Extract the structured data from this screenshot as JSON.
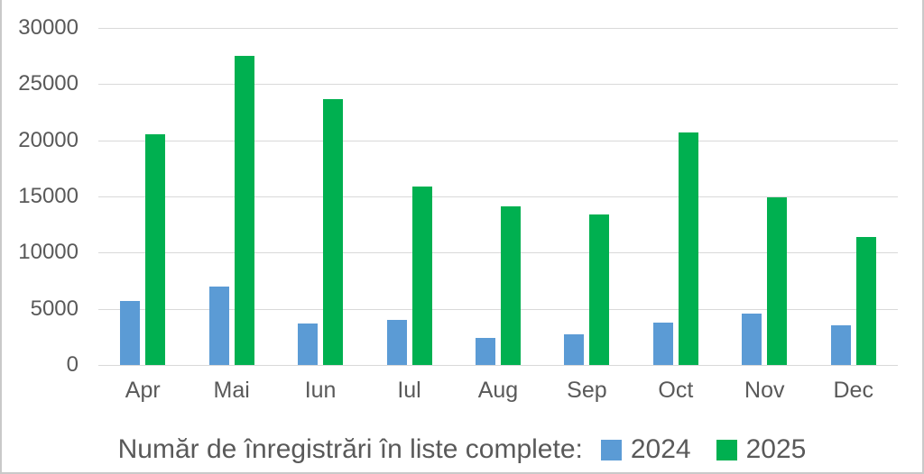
{
  "chart_data": {
    "type": "bar",
    "categories": [
      "Apr",
      "Mai",
      "Iun",
      "Iul",
      "Aug",
      "Sep",
      "Oct",
      "Nov",
      "Dec"
    ],
    "series": [
      {
        "name": "2024",
        "color": "#5B9BD5",
        "values": [
          5700,
          7000,
          3700,
          4000,
          2400,
          2700,
          3800,
          4600,
          3500
        ]
      },
      {
        "name": "2025",
        "color": "#00B050",
        "values": [
          20500,
          27500,
          23700,
          15900,
          14100,
          13400,
          20700,
          14900,
          11400
        ]
      }
    ],
    "title": "Număr de înregistrări în liste complete:",
    "xlabel": "",
    "ylabel": "",
    "ylim": [
      0,
      30000
    ],
    "ytick_step": 5000,
    "grid": true,
    "legend_position": "bottom"
  },
  "style": {
    "text_color": "#595959",
    "gridline_color": "#d9d9d9",
    "background": "#ffffff",
    "border_color": "#c9c9c9"
  }
}
